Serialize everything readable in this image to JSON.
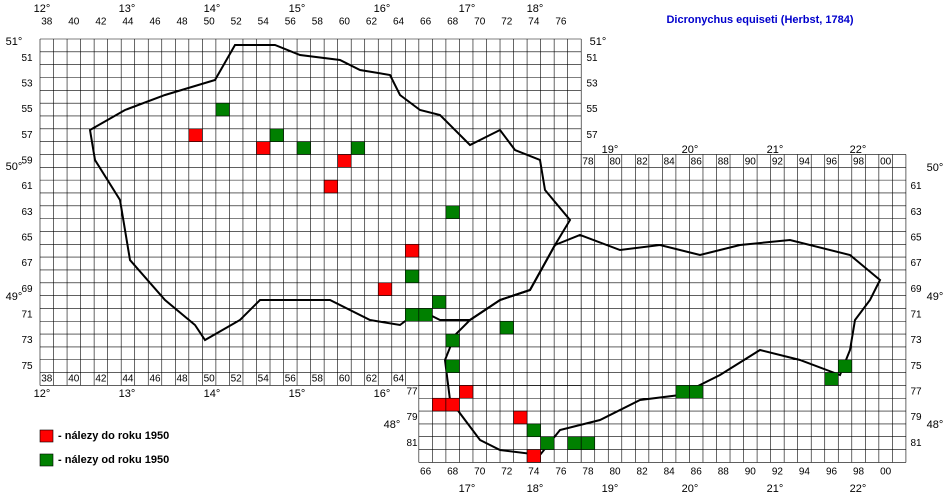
{
  "title": "Dicronychus equiseti (Herbst, 1784)",
  "columns_top": [
    "38",
    "40",
    "42",
    "44",
    "46",
    "48",
    "50",
    "52",
    "54",
    "56",
    "58",
    "60",
    "62",
    "64",
    "66",
    "68",
    "70",
    "72",
    "74",
    "76"
  ],
  "columns_sk_top": [
    "78",
    "80",
    "82",
    "84",
    "86",
    "88",
    "90",
    "92",
    "94",
    "96",
    "98",
    "00"
  ],
  "columns_bottom_cz": [
    "38",
    "40",
    "42",
    "44",
    "46",
    "48",
    "50",
    "52",
    "54",
    "56",
    "58",
    "60",
    "62",
    "64"
  ],
  "columns_bottom": [
    "66",
    "68",
    "70",
    "72",
    "74",
    "76",
    "78",
    "80",
    "82",
    "84",
    "86",
    "88",
    "90",
    "92",
    "94",
    "96",
    "98",
    "00"
  ],
  "rows_left": [
    "51",
    "53",
    "55",
    "57",
    "59",
    "61",
    "63",
    "65",
    "67",
    "69",
    "71",
    "73",
    "75"
  ],
  "rows_left_south": [
    "77",
    "79",
    "81"
  ],
  "rows_right_cz": [
    "51",
    "53",
    "55",
    "57"
  ],
  "rows_right_sk": [
    "61",
    "63",
    "65",
    "67",
    "69",
    "71",
    "73",
    "75",
    "77",
    "79",
    "81"
  ],
  "degree_labels": [
    "12°",
    "13°",
    "14°",
    "15°",
    "16°",
    "17°",
    "18°",
    "51°",
    "50°",
    "49°",
    "51°",
    "19°",
    "20°",
    "21°",
    "22°",
    "50°",
    "49°",
    "48°",
    "48°",
    "12°",
    "13°",
    "14°",
    "15°",
    "16°",
    "17°",
    "18°",
    "19°",
    "20°",
    "21°",
    "22°"
  ],
  "findings": [
    {
      "name": "- nálezy do roku 1950",
      "color": "#ff0000",
      "x": [
        49,
        54,
        60,
        59,
        65,
        63,
        67,
        68,
        69,
        73,
        74
      ],
      "y": [
        57,
        58,
        59,
        61,
        66,
        69,
        78,
        78,
        77,
        79,
        82
      ]
    },
    {
      "name": "- nálezy od roku 1950",
      "color": "#008000",
      "x": [
        51,
        55,
        57,
        61,
        68,
        65,
        67,
        65,
        66,
        72,
        68,
        68,
        74,
        75,
        77,
        78,
        85,
        86,
        96,
        97
      ],
      "y": [
        55,
        57,
        58,
        58,
        63,
        68,
        70,
        71,
        71,
        72,
        73,
        75,
        80,
        81,
        81,
        81,
        77,
        77,
        76,
        75
      ]
    }
  ]
}
